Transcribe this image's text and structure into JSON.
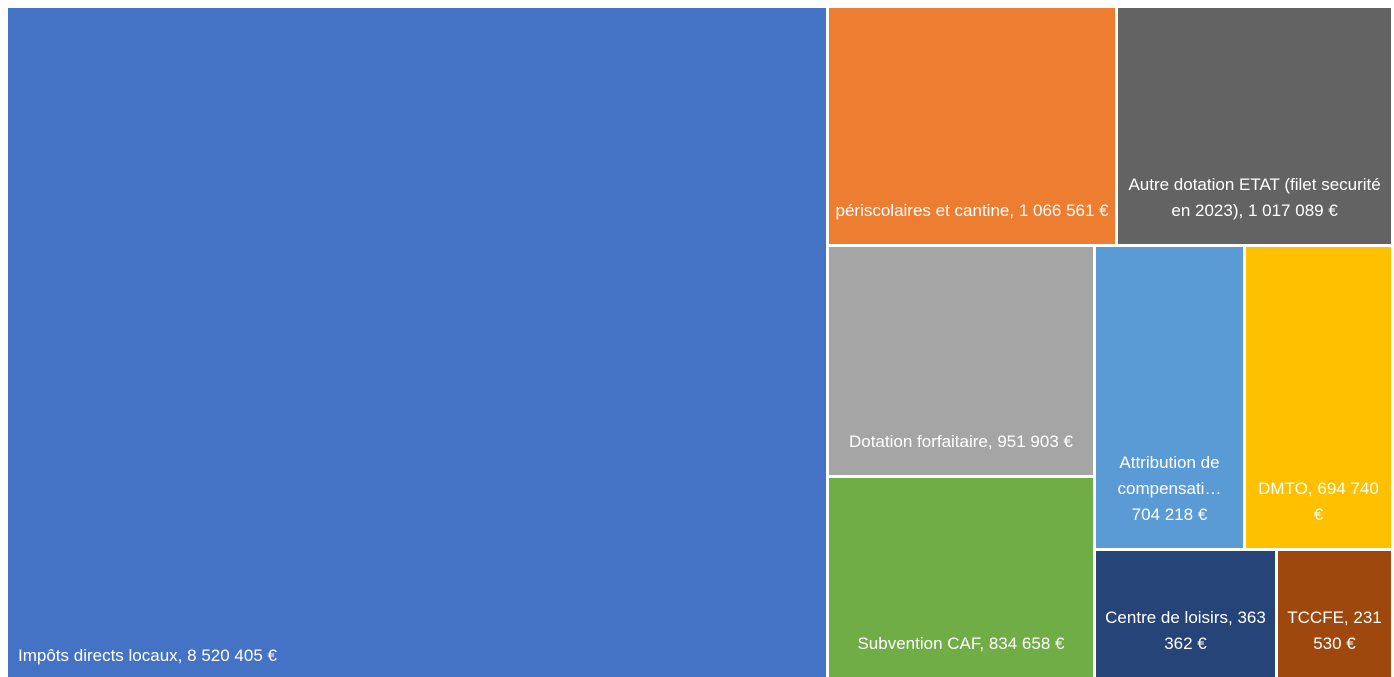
{
  "chart_data": {
    "type": "treemap",
    "categories": [
      "Impôts directs locaux,",
      "périscolaires et cantine,",
      "Autre dotation ETAT (filet securité en 2023),",
      "Dotation forfaitaire,",
      "Subvention CAF,",
      "Attribution de compensati…",
      "DMTO,",
      "Centre de loisirs,",
      "TCCFE,"
    ],
    "values": [
      8520405,
      1066561,
      1017089,
      951903,
      834658,
      704218,
      694740,
      363362,
      231530
    ],
    "value_labels": [
      "8 520 405 €",
      "1 066 561 €",
      "1 017 089 €",
      "951 903 €",
      "834 658 €",
      "704 218 €",
      "694 740 €",
      "363 362 €",
      "231 530 €"
    ],
    "colors": [
      "#4472c4",
      "#ed7d31",
      "#636363",
      "#a5a5a5",
      "#70ad47",
      "#5b9bd5",
      "#ffc000",
      "#264478",
      "#9e480e"
    ]
  }
}
